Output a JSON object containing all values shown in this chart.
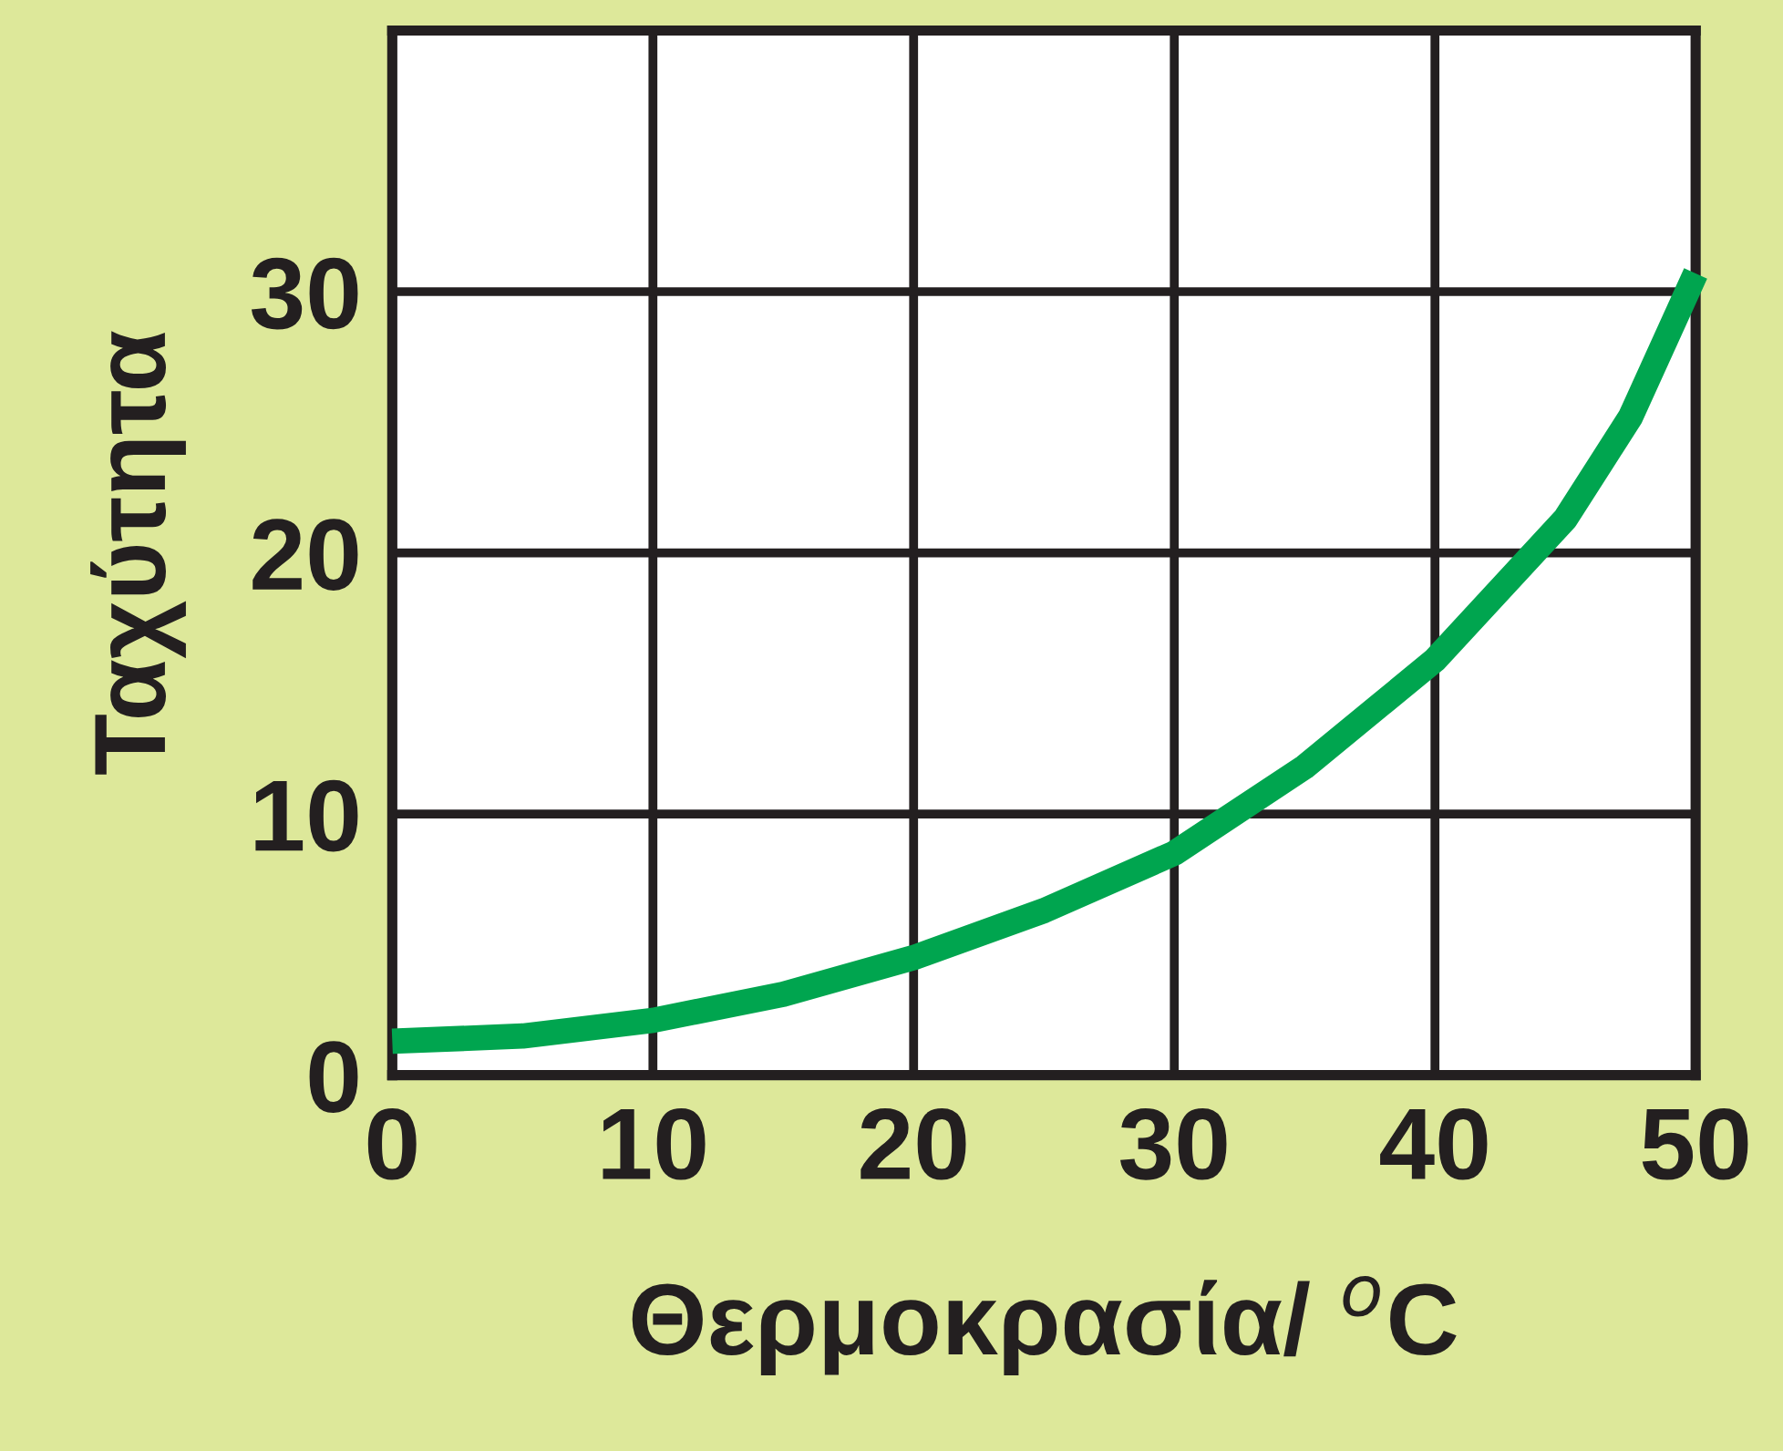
{
  "chart_data": {
    "type": "line",
    "xlabel": "Θερμοκρασία/ $^{o}$C",
    "ylabel": "Ταχύτητα",
    "x": [
      0,
      5,
      10,
      15,
      20,
      25,
      30,
      35,
      40,
      45,
      47.5,
      50
    ],
    "series": [
      {
        "color": "#00a54f",
        "values": [
          1.3,
          1.5,
          2.1,
          3.1,
          4.5,
          6.3,
          8.5,
          11.8,
          15.9,
          21.3,
          25.2,
          30.7
        ]
      }
    ],
    "xlim": [
      0,
      50
    ],
    "xticks": [
      0,
      10,
      20,
      30,
      40,
      50
    ],
    "ylim": [
      0,
      40
    ],
    "yticks": [
      0,
      10,
      20,
      30
    ],
    "grid": true,
    "marker": "none",
    "line_style": "solid"
  }
}
